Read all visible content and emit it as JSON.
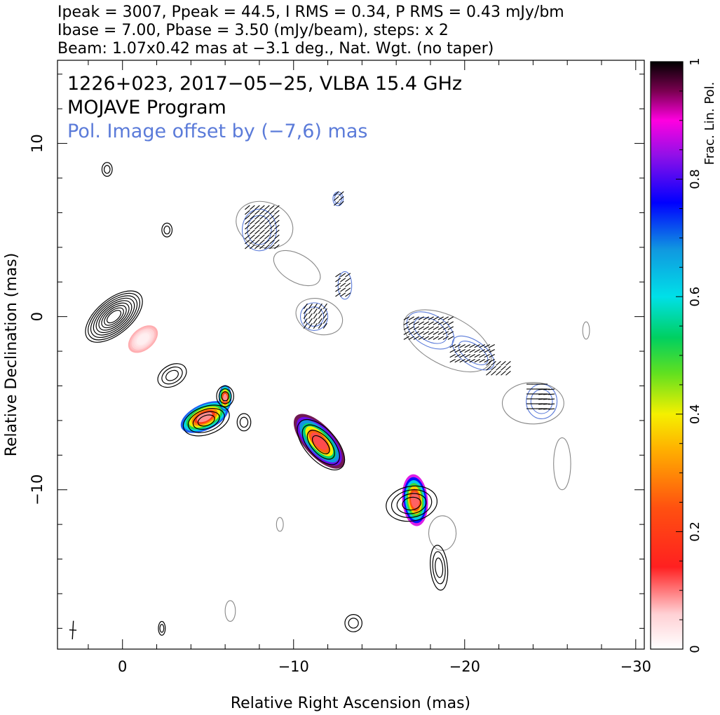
{
  "header": {
    "line1": "Ipeak = 3007, Ppeak = 44.5, I RMS = 0.34, P RMS = 0.43 mJy/bm",
    "line2": "Ibase = 7.00, Pbase = 3.50 (mJy/beam), steps: x 2",
    "line3": "Beam: 1.07x0.42 mas at −3.1 deg., Nat. Wgt. (no taper)"
  },
  "overlay": {
    "source": "1226+023, 2017−05−25, VLBA 15.4 GHz",
    "program": "MOJAVE Program",
    "offset_note": "Pol. Image offset by (−7,6) mas"
  },
  "colors": {
    "stokes_i_contour": "#000000",
    "pol_contour": "#5b7bd9",
    "offset_i_contour": "#888888",
    "evpa_tick": "#000000"
  },
  "chart_data": {
    "type": "contour",
    "xlabel": "Relative Right Ascension (mas)",
    "ylabel": "Relative Declination (mas)",
    "xlim": [
      3.8,
      -30.5
    ],
    "ylim": [
      -19.2,
      14.8
    ],
    "x_ticks": [
      {
        "value": 0,
        "label": "0"
      },
      {
        "value": -10,
        "label": "−10"
      },
      {
        "value": -20,
        "label": "−20"
      },
      {
        "value": -30,
        "label": "−30"
      }
    ],
    "y_ticks": [
      {
        "value": 10,
        "label": "10"
      },
      {
        "value": 0,
        "label": "0"
      },
      {
        "value": -10,
        "label": "−10"
      }
    ],
    "colorbar": {
      "label": "Frac. Lin. Pol.",
      "range": [
        0,
        1
      ],
      "ticks": [
        {
          "value": 0,
          "label": "0"
        },
        {
          "value": 0.2,
          "label": "0.2"
        },
        {
          "value": 0.4,
          "label": "0.4"
        },
        {
          "value": 0.6,
          "label": "0.6"
        },
        {
          "value": 0.8,
          "label": "0.8"
        },
        {
          "value": 1,
          "label": "1"
        }
      ]
    },
    "beam": {
      "major_mas": 1.07,
      "minor_mas": 0.42,
      "pa_deg": -3.1,
      "center": [
        2.9,
        -18.1
      ]
    },
    "pol_offset_mas": [
      -7,
      6
    ],
    "stokes_i_components": [
      {
        "x": 0.5,
        "y": 0.0,
        "a": 2.0,
        "b": 1.0,
        "angle": 40,
        "levels": 9
      },
      {
        "x": -2.9,
        "y": -3.4,
        "a": 0.9,
        "b": 0.6,
        "angle": 30,
        "levels": 3
      },
      {
        "x": -4.9,
        "y": -6.0,
        "a": 1.4,
        "b": 0.8,
        "angle": 20,
        "levels": 4
      },
      {
        "x": -6.0,
        "y": -4.6,
        "a": 0.5,
        "b": 0.6,
        "angle": 0,
        "levels": 3
      },
      {
        "x": -7.1,
        "y": -6.1,
        "a": 0.4,
        "b": 0.5,
        "angle": 0,
        "levels": 2
      },
      {
        "x": -11.6,
        "y": -7.4,
        "a": 1.8,
        "b": 0.9,
        "angle": -48,
        "levels": 4
      },
      {
        "x": -16.9,
        "y": -10.8,
        "a": 1.5,
        "b": 1.0,
        "angle": 10,
        "levels": 4
      },
      {
        "x": -18.5,
        "y": -14.5,
        "a": 0.5,
        "b": 1.3,
        "angle": 5,
        "levels": 3
      },
      {
        "x": -13.5,
        "y": -17.7,
        "a": 0.5,
        "b": 0.5,
        "angle": 0,
        "levels": 2
      },
      {
        "x": 0.9,
        "y": 8.5,
        "a": 0.3,
        "b": 0.4,
        "angle": 0,
        "levels": 2
      },
      {
        "x": -2.6,
        "y": 5.0,
        "a": 0.3,
        "b": 0.4,
        "angle": 0,
        "levels": 2
      },
      {
        "x": -2.3,
        "y": -18.0,
        "a": 0.2,
        "b": 0.4,
        "angle": 0,
        "levels": 2
      }
    ],
    "frac_pol_spots": [
      {
        "x": -1.2,
        "y": -1.3,
        "a": 0.8,
        "b": 0.5,
        "angle": 40,
        "frac": 0.05
      },
      {
        "x": -4.8,
        "y": -5.8,
        "a": 1.2,
        "b": 0.6,
        "angle": 25,
        "frac": 0.45
      },
      {
        "x": -6.0,
        "y": -4.7,
        "a": 0.3,
        "b": 0.6,
        "angle": 0,
        "frac": 0.45
      },
      {
        "x": -11.5,
        "y": -7.2,
        "a": 1.6,
        "b": 0.7,
        "angle": -48,
        "frac": 0.6
      },
      {
        "x": -17.1,
        "y": -10.6,
        "a": 0.6,
        "b": 1.2,
        "angle": 5,
        "frac": 0.55
      }
    ],
    "pol_contours": [
      {
        "x": -8.0,
        "y": 5.0,
        "a": 1.0,
        "b": 1.2,
        "angle": 0,
        "levels": 2
      },
      {
        "x": -11.2,
        "y": 0.0,
        "a": 0.8,
        "b": 0.8,
        "angle": 0,
        "levels": 2
      },
      {
        "x": -12.6,
        "y": 6.8,
        "a": 0.3,
        "b": 0.4,
        "angle": 0,
        "levels": 2
      },
      {
        "x": -13.0,
        "y": 1.8,
        "a": 0.4,
        "b": 0.8,
        "angle": 0,
        "levels": 1
      },
      {
        "x": -18.0,
        "y": -0.8,
        "a": 1.5,
        "b": 0.9,
        "angle": -30,
        "levels": 2
      },
      {
        "x": -20.5,
        "y": -2.1,
        "a": 1.4,
        "b": 0.7,
        "angle": -35,
        "levels": 2
      },
      {
        "x": -24.5,
        "y": -4.9,
        "a": 0.9,
        "b": 1.0,
        "angle": 0,
        "levels": 2
      }
    ],
    "offset_i_contours": [
      {
        "x": -8.3,
        "y": 5.3,
        "a": 1.7,
        "b": 1.3,
        "angle": -20
      },
      {
        "x": -11.5,
        "y": 0.0,
        "a": 1.4,
        "b": 1.0,
        "angle": -20
      },
      {
        "x": -10.2,
        "y": 2.8,
        "a": 1.5,
        "b": 0.8,
        "angle": -30
      },
      {
        "x": -19.0,
        "y": -1.4,
        "a": 2.8,
        "b": 1.4,
        "angle": -28
      },
      {
        "x": -24.0,
        "y": -5.0,
        "a": 1.8,
        "b": 1.2,
        "angle": 0
      },
      {
        "x": -25.7,
        "y": -8.5,
        "a": 0.5,
        "b": 1.5,
        "angle": 0
      },
      {
        "x": -18.7,
        "y": -12.5,
        "a": 0.8,
        "b": 1.0,
        "angle": 0
      },
      {
        "x": -6.3,
        "y": -17.0,
        "a": 0.3,
        "b": 0.6,
        "angle": 0
      },
      {
        "x": -9.2,
        "y": -12.0,
        "a": 0.2,
        "b": 0.4,
        "angle": 0
      },
      {
        "x": -27.1,
        "y": -0.8,
        "a": 0.2,
        "b": 0.5,
        "angle": 0
      }
    ],
    "evpa_regions": [
      {
        "x": -8.2,
        "y": 5.1,
        "w": 1.8,
        "h": 2.4,
        "angle_deg": 40
      },
      {
        "x": -11.3,
        "y": 0.0,
        "w": 1.2,
        "h": 1.2,
        "angle_deg": 55
      },
      {
        "x": -12.7,
        "y": 6.8,
        "w": 0.4,
        "h": 0.6,
        "angle_deg": 40
      },
      {
        "x": -12.9,
        "y": 1.8,
        "w": 0.6,
        "h": 1.2,
        "angle_deg": 35
      },
      {
        "x": -18.0,
        "y": -0.8,
        "w": 2.8,
        "h": 1.4,
        "angle_deg": 30
      },
      {
        "x": -20.5,
        "y": -2.2,
        "w": 2.4,
        "h": 1.0,
        "angle_deg": 28
      },
      {
        "x": -22.0,
        "y": -3.0,
        "w": 1.2,
        "h": 0.6,
        "angle_deg": 40
      },
      {
        "x": -24.3,
        "y": -4.7,
        "w": 1.0,
        "h": 1.6,
        "angle_deg": 0
      },
      {
        "x": -24.9,
        "y": -4.9,
        "w": 0.8,
        "h": 1.4,
        "angle_deg": 5
      }
    ]
  }
}
